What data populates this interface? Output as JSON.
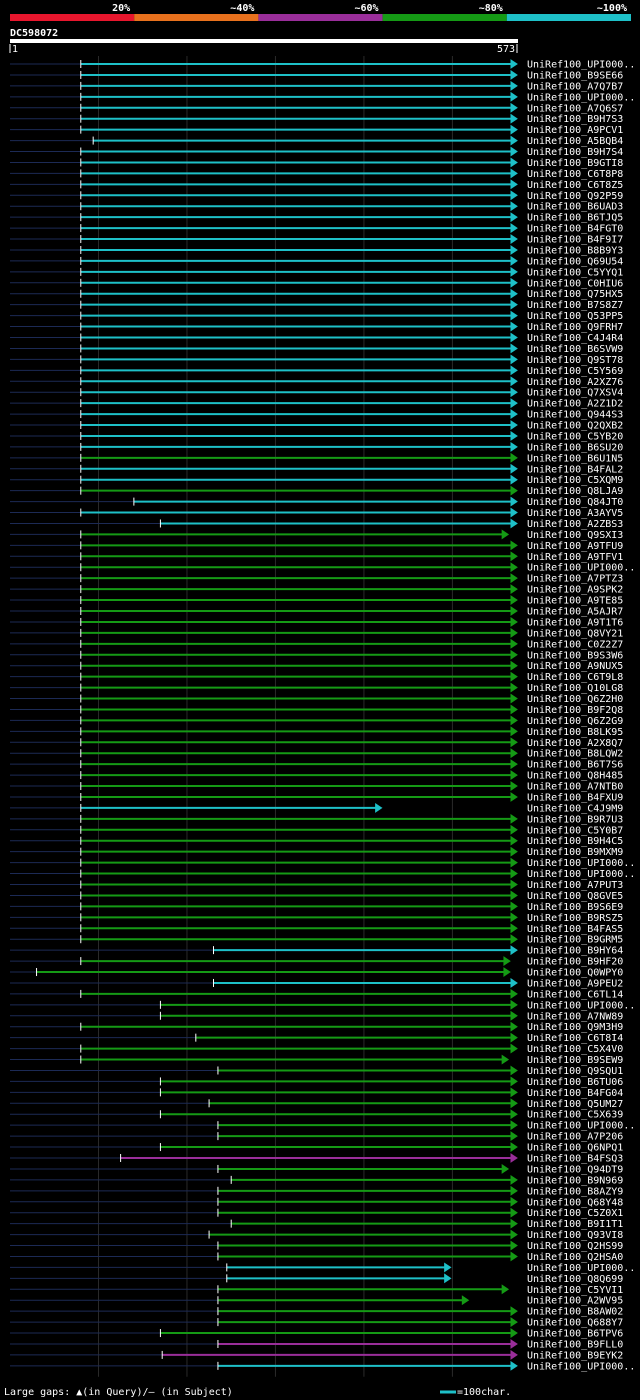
{
  "query_id": "DC598072",
  "query_start": "1",
  "query_end": "573",
  "legend_labels": [
    "20%",
    "~40%",
    "~60%",
    "~80%",
    "~100%"
  ],
  "legend_colors": [
    "#e8162d",
    "#e8711d",
    "#9a2e9a",
    "#159a15",
    "#1ec0c8"
  ],
  "footer_gaps": "Large gaps: ▲(in Query)/– (in Subject)",
  "footer_scale": "=100char.",
  "chart_data": {
    "type": "alignment",
    "query_length": 573,
    "scale_chars_per_bar": 100,
    "color_key": {
      "c": "~100%",
      "g": "~80%",
      "p": "~60%"
    },
    "hits": [
      {
        "id": "UniRef100_UPI000..",
        "s": 80,
        "e": 573,
        "c": "c"
      },
      {
        "id": "UniRef100_B9SE66",
        "s": 80,
        "e": 573,
        "c": "c"
      },
      {
        "id": "UniRef100_A7Q7B7",
        "s": 80,
        "e": 573,
        "c": "c"
      },
      {
        "id": "UniRef100_UPI000..",
        "s": 80,
        "e": 573,
        "c": "c"
      },
      {
        "id": "UniRef100_A7Q6S7",
        "s": 80,
        "e": 573,
        "c": "c"
      },
      {
        "id": "UniRef100_B9H7S3",
        "s": 80,
        "e": 573,
        "c": "c"
      },
      {
        "id": "UniRef100_A9PCV1",
        "s": 80,
        "e": 573,
        "c": "c"
      },
      {
        "id": "UniRef100_A5BQB4",
        "s": 94,
        "e": 573,
        "c": "c"
      },
      {
        "id": "UniRef100_B9H7S4",
        "s": 80,
        "e": 573,
        "c": "c"
      },
      {
        "id": "UniRef100_B9GTI8",
        "s": 80,
        "e": 573,
        "c": "c"
      },
      {
        "id": "UniRef100_C6T8P8",
        "s": 80,
        "e": 573,
        "c": "c"
      },
      {
        "id": "UniRef100_C6T8Z5",
        "s": 80,
        "e": 573,
        "c": "c"
      },
      {
        "id": "UniRef100_Q92P59",
        "s": 80,
        "e": 573,
        "c": "c"
      },
      {
        "id": "UniRef100_B6UAD3",
        "s": 80,
        "e": 573,
        "c": "c"
      },
      {
        "id": "UniRef100_B6TJQ5",
        "s": 80,
        "e": 573,
        "c": "c"
      },
      {
        "id": "UniRef100_B4FGT0",
        "s": 80,
        "e": 573,
        "c": "c"
      },
      {
        "id": "UniRef100_B4F9I7",
        "s": 80,
        "e": 573,
        "c": "c"
      },
      {
        "id": "UniRef100_B8B9Y3",
        "s": 80,
        "e": 573,
        "c": "c"
      },
      {
        "id": "UniRef100_Q69U54",
        "s": 80,
        "e": 573,
        "c": "c"
      },
      {
        "id": "UniRef100_C5YYQ1",
        "s": 80,
        "e": 573,
        "c": "c"
      },
      {
        "id": "UniRef100_C0HIU6",
        "s": 80,
        "e": 573,
        "c": "c"
      },
      {
        "id": "UniRef100_Q75HX5",
        "s": 80,
        "e": 573,
        "c": "c"
      },
      {
        "id": "UniRef100_B7S8Z7",
        "s": 80,
        "e": 573,
        "c": "c"
      },
      {
        "id": "UniRef100_Q53PP5",
        "s": 80,
        "e": 573,
        "c": "c"
      },
      {
        "id": "UniRef100_Q9FRH7",
        "s": 80,
        "e": 573,
        "c": "c"
      },
      {
        "id": "UniRef100_C4J4R4",
        "s": 80,
        "e": 573,
        "c": "c"
      },
      {
        "id": "UniRef100_B6SVW9",
        "s": 80,
        "e": 573,
        "c": "c"
      },
      {
        "id": "UniRef100_Q9ST78",
        "s": 80,
        "e": 573,
        "c": "c"
      },
      {
        "id": "UniRef100_C5Y569",
        "s": 80,
        "e": 573,
        "c": "c"
      },
      {
        "id": "UniRef100_A2XZ76",
        "s": 80,
        "e": 573,
        "c": "c"
      },
      {
        "id": "UniRef100_Q7XSV4",
        "s": 80,
        "e": 573,
        "c": "c"
      },
      {
        "id": "UniRef100_A2Z1D2",
        "s": 80,
        "e": 573,
        "c": "c"
      },
      {
        "id": "UniRef100_Q944S3",
        "s": 80,
        "e": 573,
        "c": "c"
      },
      {
        "id": "UniRef100_Q2QXB2",
        "s": 80,
        "e": 573,
        "c": "c"
      },
      {
        "id": "UniRef100_C5YB20",
        "s": 80,
        "e": 573,
        "c": "c"
      },
      {
        "id": "UniRef100_B6SU20",
        "s": 80,
        "e": 573,
        "c": "c"
      },
      {
        "id": "UniRef100_B6U1N5",
        "s": 80,
        "e": 573,
        "c": "g"
      },
      {
        "id": "UniRef100_B4FAL2",
        "s": 80,
        "e": 573,
        "c": "c"
      },
      {
        "id": "UniRef100_C5XQM9",
        "s": 80,
        "e": 573,
        "c": "c"
      },
      {
        "id": "UniRef100_Q8LJA9",
        "s": 80,
        "e": 573,
        "c": "g"
      },
      {
        "id": "UniRef100_Q84JT0",
        "s": 140,
        "e": 573,
        "c": "c"
      },
      {
        "id": "UniRef100_A3AYV5",
        "s": 80,
        "e": 573,
        "c": "c"
      },
      {
        "id": "UniRef100_A2ZBS3",
        "s": 170,
        "e": 573,
        "c": "c"
      },
      {
        "id": "UniRef100_Q9SXI3",
        "s": 80,
        "e": 563,
        "c": "g"
      },
      {
        "id": "UniRef100_A9TFU9",
        "s": 80,
        "e": 573,
        "c": "g"
      },
      {
        "id": "UniRef100_A9TFV1",
        "s": 80,
        "e": 573,
        "c": "g"
      },
      {
        "id": "UniRef100_UPI000..",
        "s": 80,
        "e": 573,
        "c": "g"
      },
      {
        "id": "UniRef100_A7PTZ3",
        "s": 80,
        "e": 573,
        "c": "g"
      },
      {
        "id": "UniRef100_A9SPK2",
        "s": 80,
        "e": 573,
        "c": "g"
      },
      {
        "id": "UniRef100_A9TE85",
        "s": 80,
        "e": 573,
        "c": "g"
      },
      {
        "id": "UniRef100_A5AJR7",
        "s": 80,
        "e": 573,
        "c": "g"
      },
      {
        "id": "UniRef100_A9T1T6",
        "s": 80,
        "e": 573,
        "c": "g"
      },
      {
        "id": "UniRef100_Q8VY21",
        "s": 80,
        "e": 573,
        "c": "g"
      },
      {
        "id": "UniRef100_C0Z2Z7",
        "s": 80,
        "e": 573,
        "c": "g"
      },
      {
        "id": "UniRef100_B9S3W6",
        "s": 80,
        "e": 573,
        "c": "g"
      },
      {
        "id": "UniRef100_A9NUX5",
        "s": 80,
        "e": 573,
        "c": "g"
      },
      {
        "id": "UniRef100_C6T9L8",
        "s": 80,
        "e": 573,
        "c": "g"
      },
      {
        "id": "UniRef100_Q10LG8",
        "s": 80,
        "e": 573,
        "c": "g"
      },
      {
        "id": "UniRef100_Q6Z2H0",
        "s": 80,
        "e": 573,
        "c": "g"
      },
      {
        "id": "UniRef100_B9F2Q8",
        "s": 80,
        "e": 573,
        "c": "g"
      },
      {
        "id": "UniRef100_Q6Z2G9",
        "s": 80,
        "e": 573,
        "c": "g"
      },
      {
        "id": "UniRef100_B8LK95",
        "s": 80,
        "e": 573,
        "c": "g"
      },
      {
        "id": "UniRef100_A2X8Q7",
        "s": 80,
        "e": 573,
        "c": "g"
      },
      {
        "id": "UniRef100_B8LQW2",
        "s": 80,
        "e": 573,
        "c": "g"
      },
      {
        "id": "UniRef100_B6T7S6",
        "s": 80,
        "e": 573,
        "c": "g"
      },
      {
        "id": "UniRef100_Q8H485",
        "s": 80,
        "e": 573,
        "c": "g"
      },
      {
        "id": "UniRef100_A7NTB0",
        "s": 80,
        "e": 573,
        "c": "g"
      },
      {
        "id": "UniRef100_B4FXU9",
        "s": 80,
        "e": 573,
        "c": "g"
      },
      {
        "id": "UniRef100_C4J9M9",
        "s": 80,
        "e": 420,
        "c": "c"
      },
      {
        "id": "UniRef100_B9R7U3",
        "s": 80,
        "e": 573,
        "c": "g"
      },
      {
        "id": "UniRef100_C5Y0B7",
        "s": 80,
        "e": 573,
        "c": "g"
      },
      {
        "id": "UniRef100_B9H4C5",
        "s": 80,
        "e": 573,
        "c": "g"
      },
      {
        "id": "UniRef100_B9MXM9",
        "s": 80,
        "e": 573,
        "c": "g"
      },
      {
        "id": "UniRef100_UPI000..",
        "s": 80,
        "e": 573,
        "c": "g"
      },
      {
        "id": "UniRef100_UPI000..",
        "s": 80,
        "e": 573,
        "c": "g"
      },
      {
        "id": "UniRef100_A7PUT3",
        "s": 80,
        "e": 573,
        "c": "g"
      },
      {
        "id": "UniRef100_Q8GVE5",
        "s": 80,
        "e": 573,
        "c": "g"
      },
      {
        "id": "UniRef100_B9S6E9",
        "s": 80,
        "e": 573,
        "c": "g"
      },
      {
        "id": "UniRef100_B9RSZ5",
        "s": 80,
        "e": 573,
        "c": "g"
      },
      {
        "id": "UniRef100_B4FAS5",
        "s": 80,
        "e": 573,
        "c": "g"
      },
      {
        "id": "UniRef100_B9GRM5",
        "s": 80,
        "e": 573,
        "c": "g"
      },
      {
        "id": "UniRef100_B9HY64",
        "s": 230,
        "e": 573,
        "c": "c"
      },
      {
        "id": "UniRef100_B9HF20",
        "s": 80,
        "e": 565,
        "c": "g"
      },
      {
        "id": "UniRef100_Q0WPY0",
        "s": 30,
        "e": 565,
        "c": "g"
      },
      {
        "id": "UniRef100_A9PEU2",
        "s": 230,
        "e": 573,
        "c": "c"
      },
      {
        "id": "UniRef100_C6TL14",
        "s": 80,
        "e": 573,
        "c": "g"
      },
      {
        "id": "UniRef100_UPI000..",
        "s": 170,
        "e": 573,
        "c": "g"
      },
      {
        "id": "UniRef100_A7NW89",
        "s": 170,
        "e": 573,
        "c": "g"
      },
      {
        "id": "UniRef100_Q9M3H9",
        "s": 80,
        "e": 573,
        "c": "g"
      },
      {
        "id": "UniRef100_C6T8I4",
        "s": 210,
        "e": 573,
        "c": "g"
      },
      {
        "id": "UniRef100_C5X4V0",
        "s": 80,
        "e": 573,
        "c": "g"
      },
      {
        "id": "UniRef100_B9SEW9",
        "s": 80,
        "e": 563,
        "c": "g"
      },
      {
        "id": "UniRef100_Q9SQU1",
        "s": 235,
        "e": 573,
        "c": "g"
      },
      {
        "id": "UniRef100_B6TU06",
        "s": 170,
        "e": 573,
        "c": "g"
      },
      {
        "id": "UniRef100_B4FG04",
        "s": 170,
        "e": 573,
        "c": "g"
      },
      {
        "id": "UniRef100_Q5UM27",
        "s": 225,
        "e": 573,
        "c": "g"
      },
      {
        "id": "UniRef100_C5X639",
        "s": 170,
        "e": 573,
        "c": "g"
      },
      {
        "id": "UniRef100_UPI000..",
        "s": 235,
        "e": 573,
        "c": "g"
      },
      {
        "id": "UniRef100_A7P206",
        "s": 235,
        "e": 573,
        "c": "g"
      },
      {
        "id": "UniRef100_Q6NPQ1",
        "s": 170,
        "e": 573,
        "c": "g"
      },
      {
        "id": "UniRef100_B4FSQ3",
        "s": 125,
        "e": 573,
        "c": "p"
      },
      {
        "id": "UniRef100_Q94DT9",
        "s": 235,
        "e": 563,
        "c": "g"
      },
      {
        "id": "UniRef100_B9N969",
        "s": 250,
        "e": 573,
        "c": "g"
      },
      {
        "id": "UniRef100_B8AZY9",
        "s": 235,
        "e": 573,
        "c": "g"
      },
      {
        "id": "UniRef100_Q68Y48",
        "s": 235,
        "e": 573,
        "c": "g"
      },
      {
        "id": "UniRef100_C5Z0X1",
        "s": 235,
        "e": 573,
        "c": "g"
      },
      {
        "id": "UniRef100_B9I1T1",
        "s": 250,
        "e": 573,
        "c": "g"
      },
      {
        "id": "UniRef100_Q93VI8",
        "s": 225,
        "e": 573,
        "c": "g"
      },
      {
        "id": "UniRef100_Q2HS99",
        "s": 235,
        "e": 573,
        "c": "g"
      },
      {
        "id": "UniRef100_Q2HSA0",
        "s": 235,
        "e": 573,
        "c": "g"
      },
      {
        "id": "UniRef100_UPI000..",
        "s": 245,
        "e": 498,
        "c": "c"
      },
      {
        "id": "UniRef100_Q8Q699",
        "s": 245,
        "e": 498,
        "c": "c"
      },
      {
        "id": "UniRef100_C5YVI1",
        "s": 235,
        "e": 563,
        "c": "g"
      },
      {
        "id": "UniRef100_A2WV95",
        "s": 235,
        "e": 518,
        "c": "g"
      },
      {
        "id": "UniRef100_B8AW02",
        "s": 235,
        "e": 573,
        "c": "g"
      },
      {
        "id": "UniRef100_Q688Y7",
        "s": 235,
        "e": 573,
        "c": "g"
      },
      {
        "id": "UniRef100_B6TPV6",
        "s": 170,
        "e": 573,
        "c": "g"
      },
      {
        "id": "UniRef100_B9FLL0",
        "s": 235,
        "e": 573,
        "c": "p"
      },
      {
        "id": "UniRef100_B9EYK2",
        "s": 172,
        "e": 573,
        "c": "p"
      },
      {
        "id": "UniRef100_UPI000..",
        "s": 235,
        "e": 573,
        "c": "c"
      }
    ]
  }
}
